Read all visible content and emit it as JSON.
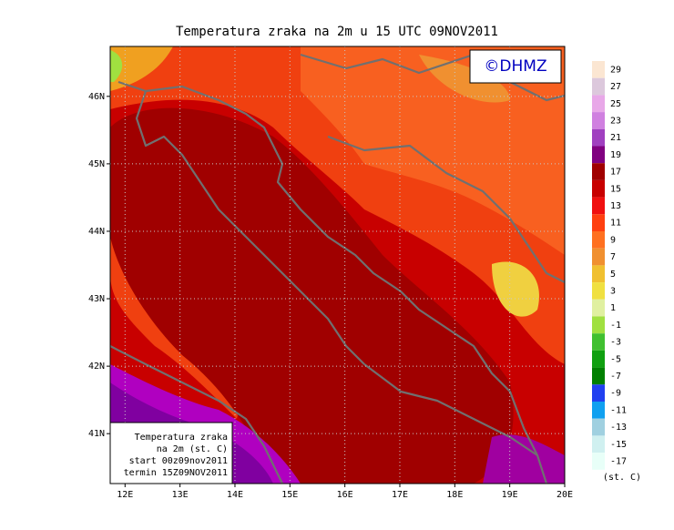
{
  "title": "Temperatura zraka na 2m u 15 UTC 09NOV2011",
  "copyright": "©DHMZ",
  "map": {
    "xlim": [
      11.73,
      20
    ],
    "ylim": [
      40.26,
      46.74
    ],
    "xticks": [
      {
        "value": 12,
        "label": "12E"
      },
      {
        "value": 13,
        "label": "13E"
      },
      {
        "value": 14,
        "label": "14E"
      },
      {
        "value": 15,
        "label": "15E"
      },
      {
        "value": 16,
        "label": "16E"
      },
      {
        "value": 17,
        "label": "17E"
      },
      {
        "value": 18,
        "label": "18E"
      },
      {
        "value": 19,
        "label": "19E"
      },
      {
        "value": 20,
        "label": "20E"
      }
    ],
    "yticks": [
      {
        "value": 41,
        "label": "41N"
      },
      {
        "value": 42,
        "label": "42N"
      },
      {
        "value": 43,
        "label": "43N"
      },
      {
        "value": 44,
        "label": "44N"
      },
      {
        "value": 45,
        "label": "45N"
      },
      {
        "value": 46,
        "label": "46N"
      }
    ],
    "grid": true
  },
  "info": [
    "Temperatura zraka",
    "na 2m (st. C)",
    "start 00z09nov2011",
    "termin 15Z09NOV2011"
  ],
  "colorbar": {
    "levels": [
      29,
      27,
      25,
      23,
      21,
      19,
      17,
      15,
      13,
      11,
      9,
      7,
      5,
      3,
      1,
      -1,
      -3,
      -5,
      -7,
      -9,
      -11,
      -13,
      -15,
      -17
    ],
    "colors": [
      "#fbe6d2",
      "#dcc8dc",
      "#e8a8e8",
      "#d080e0",
      "#a040c0",
      "#800080",
      "#a00000",
      "#c80000",
      "#f01010",
      "#ff4010",
      "#ff7020",
      "#f09030",
      "#f0c030",
      "#f0e040",
      "#e0f0a0",
      "#a0e040",
      "#40c030",
      "#10a010",
      "#008000",
      "#2040f0",
      "#10a0f0",
      "#a0d0e0",
      "#d0f0f0",
      "#e8fff8"
    ],
    "unit": "(st. C)"
  }
}
